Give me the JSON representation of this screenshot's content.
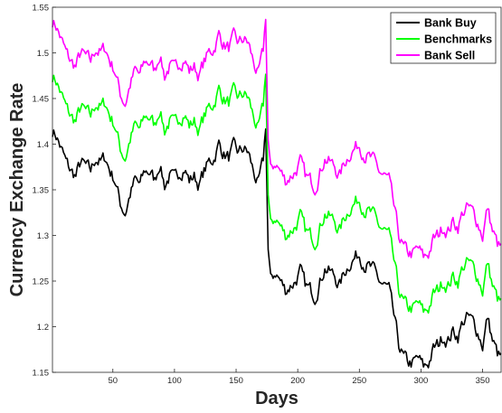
{
  "chart_data": {
    "type": "line",
    "title": "",
    "xlabel": "Days",
    "ylabel": "Currency Exchange Rate",
    "xlim": [
      1,
      365
    ],
    "ylim": [
      1.15,
      1.55
    ],
    "xticks": [
      50,
      100,
      150,
      200,
      250,
      300,
      350
    ],
    "yticks": [
      1.15,
      1.2,
      1.25,
      1.3,
      1.35,
      1.4,
      1.45,
      1.5,
      1.55
    ],
    "xtick_labels": [
      "50",
      "100",
      "150",
      "200",
      "250",
      "300",
      "350"
    ],
    "ytick_labels": [
      "1.15",
      "1.2",
      "1.25",
      "1.3",
      "1.35",
      "1.4",
      "1.45",
      "1.5",
      "1.55"
    ],
    "grid": false,
    "legend_position": "top-right",
    "legend": [
      "Bank Buy",
      "Benchmarks",
      "Bank Sell"
    ],
    "colors": {
      "Bank Buy": "#000000",
      "Benchmarks": "#00ff00",
      "Bank Sell": "#ff00ff"
    },
    "benchmark_profile": {
      "x": [
        1,
        4,
        8,
        12,
        16,
        20,
        24,
        28,
        32,
        36,
        40,
        44,
        48,
        52,
        56,
        60,
        64,
        68,
        72,
        76,
        80,
        84,
        88,
        92,
        96,
        100,
        104,
        108,
        112,
        116,
        120,
        124,
        128,
        132,
        136,
        140,
        144,
        148,
        152,
        156,
        160,
        164,
        168,
        172,
        174,
        176,
        178,
        182,
        186,
        190,
        194,
        198,
        202,
        206,
        210,
        214,
        218,
        222,
        226,
        230,
        234,
        238,
        242,
        246,
        250,
        254,
        258,
        262,
        266,
        270,
        274,
        278,
        282,
        286,
        290,
        294,
        298,
        302,
        306,
        310,
        314,
        318,
        322,
        326,
        330,
        334,
        338,
        342,
        346,
        350,
        354,
        358,
        362,
        365
      ],
      "y": [
        1.475,
        1.47,
        1.455,
        1.44,
        1.43,
        1.425,
        1.44,
        1.435,
        1.43,
        1.445,
        1.44,
        1.445,
        1.43,
        1.42,
        1.395,
        1.385,
        1.405,
        1.42,
        1.415,
        1.43,
        1.43,
        1.42,
        1.44,
        1.415,
        1.425,
        1.42,
        1.43,
        1.435,
        1.42,
        1.425,
        1.415,
        1.43,
        1.44,
        1.445,
        1.46,
        1.45,
        1.445,
        1.455,
        1.45,
        1.455,
        1.45,
        1.43,
        1.415,
        1.44,
        1.48,
        1.345,
        1.31,
        1.32,
        1.31,
        1.3,
        1.305,
        1.31,
        1.32,
        1.305,
        1.3,
        1.295,
        1.31,
        1.325,
        1.32,
        1.315,
        1.305,
        1.32,
        1.33,
        1.335,
        1.34,
        1.33,
        1.325,
        1.32,
        1.31,
        1.305,
        1.3,
        1.27,
        1.24,
        1.225,
        1.22,
        1.22,
        1.225,
        1.215,
        1.22,
        1.235,
        1.24,
        1.25,
        1.245,
        1.255,
        1.25,
        1.265,
        1.27,
        1.265,
        1.255,
        1.24,
        1.27,
        1.245,
        1.23,
        1.225
      ]
    },
    "series": [
      {
        "name": "Bank Buy",
        "spread": -0.06
      },
      {
        "name": "Benchmarks",
        "spread": 0
      },
      {
        "name": "Bank Sell",
        "spread": 0.06
      }
    ]
  }
}
